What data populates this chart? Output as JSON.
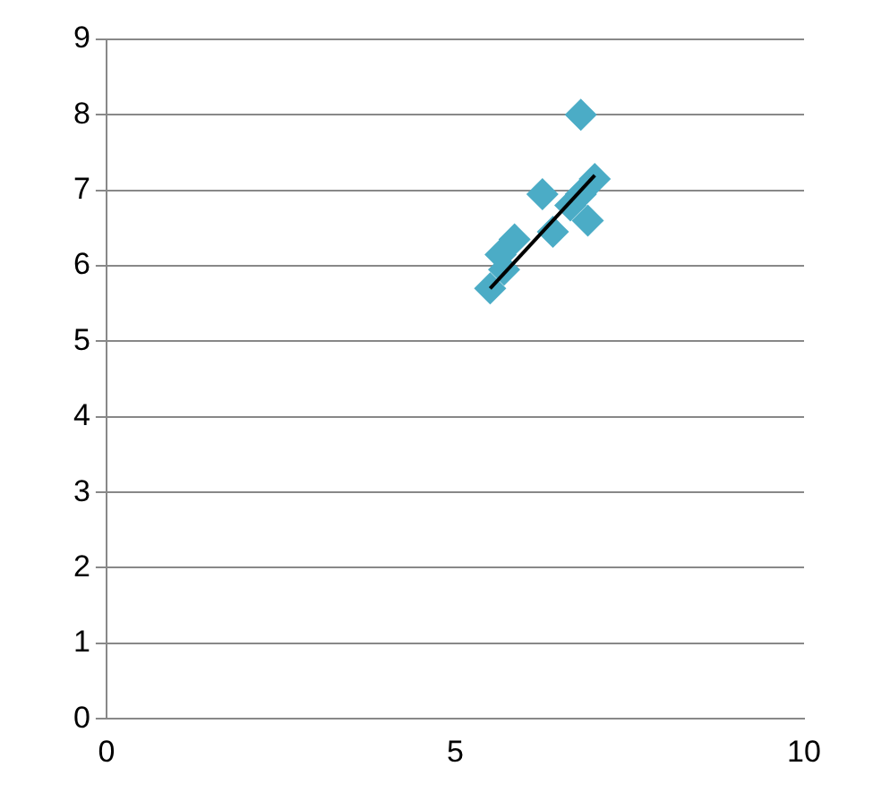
{
  "chart_data": {
    "type": "scatter",
    "xlim": [
      0,
      10
    ],
    "xticks": [
      0,
      5,
      10
    ],
    "ylim": [
      0,
      9
    ],
    "yticks": [
      0,
      1,
      2,
      3,
      4,
      5,
      6,
      7,
      8,
      9
    ],
    "grid": "y",
    "marker": "diamond",
    "series": [
      {
        "type": "scatter",
        "color": "#4bacc6",
        "x": [
          5.5,
          5.7,
          5.65,
          5.85,
          6.2,
          6.25,
          6.4,
          6.65,
          6.8,
          6.9,
          7.0,
          6.8
        ],
        "values": [
          5.7,
          5.95,
          6.15,
          6.35,
          null,
          6.95,
          6.45,
          6.8,
          6.95,
          6.6,
          7.15,
          8.0
        ]
      },
      {
        "type": "line",
        "color": "#000000",
        "marker": "none",
        "x": [
          5.5,
          7.0
        ],
        "values": [
          5.7,
          7.2
        ]
      }
    ]
  }
}
